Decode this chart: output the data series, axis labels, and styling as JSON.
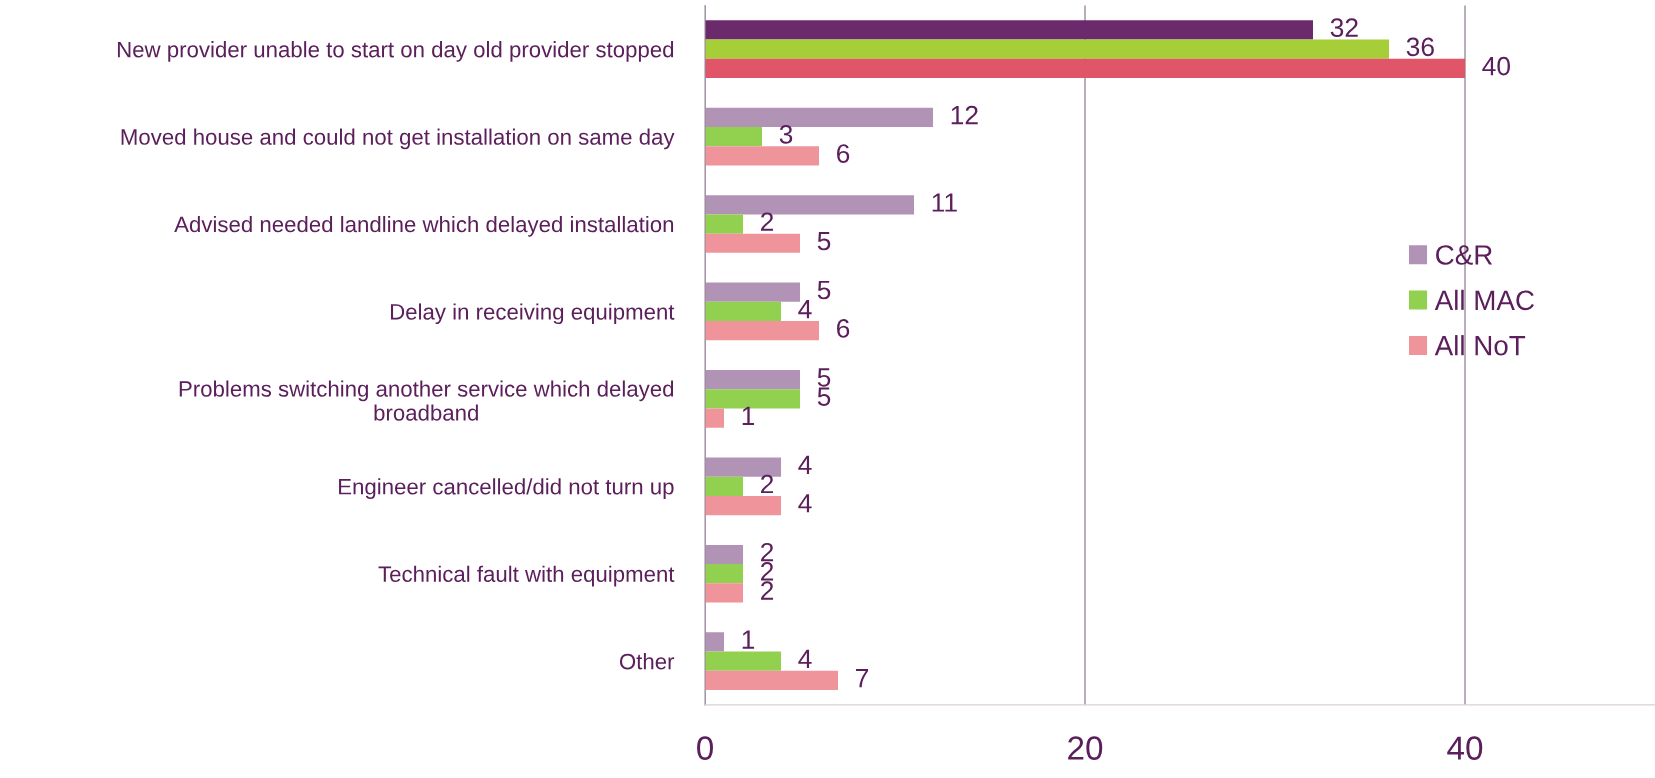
{
  "chart_data": {
    "type": "bar",
    "orientation": "horizontal",
    "categories": [
      "New provider unable to start on day old provider stopped",
      "Moved house and could not get installation on same day",
      "Advised needed landline which delayed installation",
      "Delay in receiving equipment",
      "Problems switching another service which delayed broadband",
      "Engineer cancelled/did not turn up",
      "Technical fault with equipment",
      "Other"
    ],
    "series": [
      {
        "name": "C&R",
        "color": "#b093b5",
        "colors": [
          "#6b2a6b",
          "#b093b5",
          "#b093b5",
          "#b093b5",
          "#b093b5",
          "#b093b5",
          "#b093b5",
          "#b093b5"
        ],
        "values": [
          32,
          12,
          11,
          5,
          5,
          4,
          2,
          1
        ]
      },
      {
        "name": "All MAC",
        "color": "#92d050",
        "colors": [
          "#a6ce39",
          "#92d050",
          "#92d050",
          "#92d050",
          "#92d050",
          "#92d050",
          "#92d050",
          "#92d050"
        ],
        "values": [
          36,
          3,
          2,
          4,
          5,
          2,
          2,
          4
        ]
      },
      {
        "name": "All NoT",
        "color": "#f0949b",
        "colors": [
          "#e05567",
          "#f0949b",
          "#f0949b",
          "#f0949b",
          "#f0949b",
          "#f0949b",
          "#f0949b",
          "#f0949b"
        ],
        "values": [
          40,
          6,
          5,
          6,
          1,
          4,
          2,
          7
        ]
      }
    ],
    "xlim": [
      0,
      50
    ],
    "xticks": [
      0,
      20,
      40
    ],
    "grid": "x",
    "legend": "right",
    "data_labels": true
  }
}
